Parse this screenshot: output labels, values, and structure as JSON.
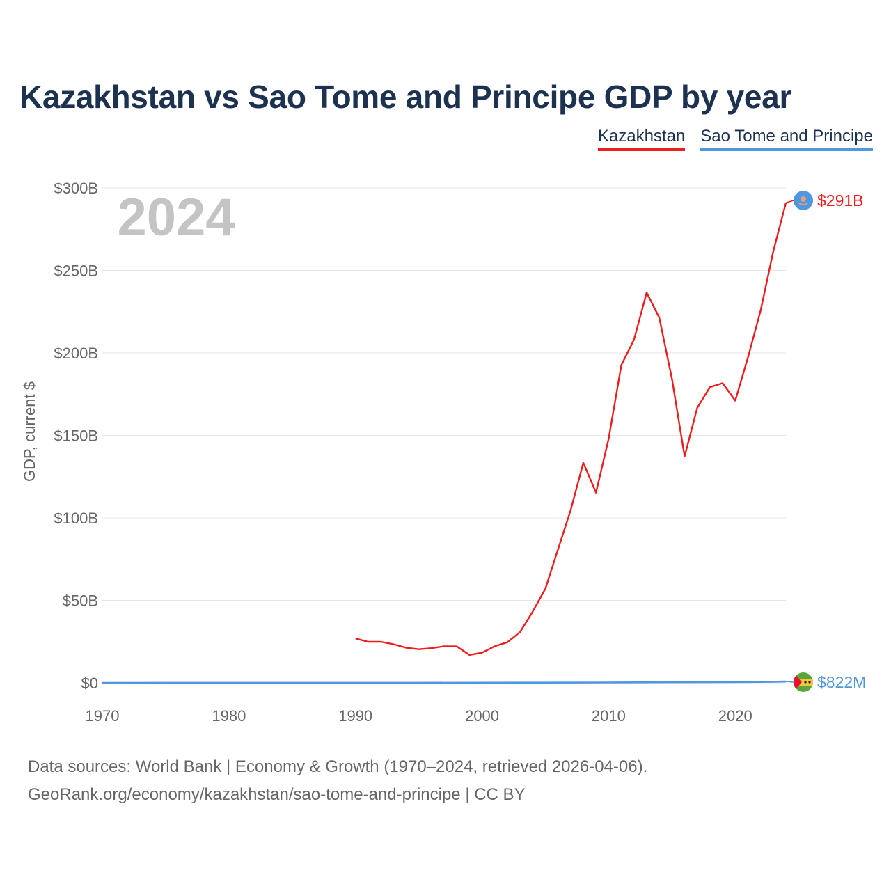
{
  "title": "Kazakhstan vs Sao Tome and Principe GDP by year",
  "legend": {
    "kazakhstan": "Kazakhstan",
    "sao_tome": "Sao Tome and Principe"
  },
  "year_label": "2024",
  "y_axis_title": "GDP, current $",
  "end_labels": {
    "kazakhstan": "$291B",
    "sao_tome": "$822M"
  },
  "footer": {
    "line1": "Data sources: World Bank | Economy & Growth (1970–2024, retrieved 2026-04-06).",
    "line2": "GeoRank.org/economy/kazakhstan/sao-tome-and-principe | CC BY"
  },
  "colors": {
    "kazakhstan": "#ee1c1c",
    "sao_tome": "#4f97de",
    "grid": "#e6e6e6",
    "axis_text": "#666666",
    "year": "#c4c4c4"
  },
  "chart_data": {
    "type": "line",
    "title": "Kazakhstan vs Sao Tome and Principe GDP by year",
    "xlabel": "",
    "ylabel": "GDP, current $",
    "xlim": [
      1970,
      2024
    ],
    "ylim": [
      0,
      300
    ],
    "y_unit": "billion USD",
    "x_ticks": [
      1970,
      1980,
      1990,
      2000,
      2010,
      2020
    ],
    "y_ticks": [
      {
        "value": 0,
        "label": "$0"
      },
      {
        "value": 50,
        "label": "$50B"
      },
      {
        "value": 100,
        "label": "$100B"
      },
      {
        "value": 150,
        "label": "$150B"
      },
      {
        "value": 200,
        "label": "$200B"
      },
      {
        "value": 250,
        "label": "$250B"
      },
      {
        "value": 300,
        "label": "$300B"
      }
    ],
    "grid": true,
    "legend_position": "top-right",
    "series": [
      {
        "name": "Kazakhstan",
        "x": [
          1990,
          1991,
          1992,
          1993,
          1994,
          1995,
          1996,
          1997,
          1998,
          1999,
          2000,
          2001,
          2002,
          2003,
          2004,
          2005,
          2006,
          2007,
          2008,
          2009,
          2010,
          2011,
          2012,
          2013,
          2014,
          2015,
          2016,
          2017,
          2018,
          2019,
          2020,
          2021,
          2022,
          2023,
          2024
        ],
        "values": [
          26.9,
          24.9,
          24.9,
          23.4,
          21.3,
          20.4,
          21.0,
          22.2,
          22.1,
          16.9,
          18.3,
          22.2,
          24.6,
          30.8,
          43.2,
          57.1,
          81.0,
          104.8,
          133.4,
          115.3,
          148.0,
          192.6,
          208.0,
          236.6,
          221.4,
          184.4,
          137.3,
          166.8,
          179.3,
          181.7,
          171.1,
          197.1,
          225.5,
          261.4,
          291.0
        ]
      },
      {
        "name": "Sao Tome and Principe",
        "x": [
          1970,
          1975,
          1980,
          1985,
          1990,
          1995,
          2000,
          2005,
          2010,
          2015,
          2020,
          2022,
          2023,
          2024
        ],
        "values": [
          0.02,
          0.04,
          0.05,
          0.04,
          0.05,
          0.05,
          0.08,
          0.12,
          0.2,
          0.32,
          0.47,
          0.55,
          0.68,
          0.822
        ]
      }
    ]
  }
}
